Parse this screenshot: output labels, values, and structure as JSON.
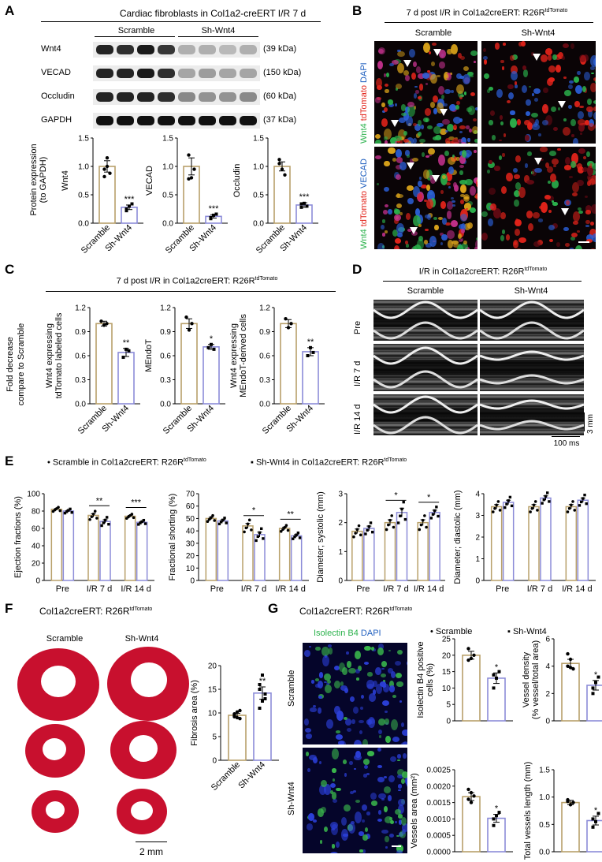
{
  "panels": {
    "A": {
      "letter": "A",
      "title": "Cardiac fibroblasts in Col1a2-creERT I/R 7 d",
      "groups": [
        "Scramble",
        "Sh-Wnt4"
      ],
      "blots": [
        {
          "name": "Wnt4",
          "size": "(39 kDa)",
          "bands": [
            0.9,
            0.85,
            0.95,
            0.8,
            0.15,
            0.15,
            0.1,
            0.15
          ]
        },
        {
          "name": "VECAD",
          "size": "(150 kDa)",
          "bands": [
            0.9,
            0.9,
            0.95,
            0.85,
            0.2,
            0.25,
            0.2,
            0.2
          ]
        },
        {
          "name": "Occludin",
          "size": "(60 kDa)",
          "bands": [
            0.9,
            0.9,
            0.9,
            0.85,
            0.35,
            0.3,
            0.3,
            0.35
          ]
        },
        {
          "name": "GAPDH",
          "size": "(37 kDa)",
          "bands": [
            1,
            1,
            1,
            1,
            1,
            1,
            1,
            1
          ]
        }
      ]
    },
    "B": {
      "letter": "B",
      "title_pre": "7 d post I/R in Col1a2creERT: R26R",
      "title_sup": "tdTomato",
      "columns": [
        "Scramble",
        "Sh-Wnt4"
      ],
      "row1_label": [
        "Wnt4",
        " tdTomato",
        " DAPI"
      ],
      "row2_label": [
        "Wnt4",
        " tdTomato",
        " VECAD"
      ]
    },
    "C": {
      "letter": "C",
      "title_pre": "7 d post I/R in Col1a2creERT: R26R",
      "title_sup": "tdTomato",
      "common_ylabel": [
        "Fold  decrease",
        "compare to Scramble"
      ]
    },
    "D": {
      "letter": "D",
      "title_pre": "I/R in Col1a2creERT: R26R",
      "title_sup": "tdTomato",
      "columns": [
        "Scramble",
        "Sh-Wnt4"
      ],
      "rows": [
        "Pre",
        "I/R 7 d",
        "I/R 14 d"
      ],
      "scale_y": "3 mm",
      "scale_x": "100 ms"
    },
    "E": {
      "letter": "E",
      "legend": [
        {
          "symbol": "•",
          "text": "Scramble in Col1a2creERT: R26R",
          "sup": "tdTomato"
        },
        {
          "symbol": "▪",
          "text": "Sh-Wnt4 in Col1a2creERT: R26R",
          "sup": "tdTomato"
        }
      ]
    },
    "F": {
      "letter": "F",
      "title_pre": "Col1a2creERT: R26R",
      "title_sup": "tdTomato",
      "columns": [
        "Scramble",
        "Sh-Wnt4"
      ],
      "scale": "2 mm"
    },
    "G": {
      "letter": "G",
      "title_pre": "Col1a2creERT: R26R",
      "title_sup": "tdTomato",
      "stain": [
        "Isolectin B4",
        " DAPI"
      ],
      "rows": [
        "Scramble",
        "Sh-Wnt4"
      ],
      "legend": [
        "• Scramble",
        "▪ Sh-Wnt4"
      ]
    }
  },
  "colors": {
    "scramble": "#b8a06a",
    "shwnt4": "#8c8cd8",
    "sig": "#000000"
  },
  "chart_data": [
    {
      "id": "A-wnt4",
      "type": "bar",
      "categories": [
        "Scramble",
        "Sh-Wnt4"
      ],
      "values": [
        1.0,
        0.28
      ],
      "errors": [
        0.1,
        0.04
      ],
      "ylabel": "Wnt4",
      "ylim": [
        0,
        1.5
      ],
      "yticks": [
        "0.0",
        "0.5",
        "1.0",
        "1.5"
      ],
      "sig": "***",
      "points": [
        [
          0.95,
          1.15,
          0.88,
          0.82,
          1.0
        ],
        [
          0.25,
          0.3,
          0.34,
          0.22
        ]
      ],
      "outer_ylabel": [
        "Protein expression",
        "(to GAPDH)"
      ]
    },
    {
      "id": "A-vecad",
      "type": "bar",
      "categories": [
        "Scramble",
        "Sh-Wnt4"
      ],
      "values": [
        1.0,
        0.12
      ],
      "errors": [
        0.15,
        0.03
      ],
      "ylabel": "VECAD",
      "ylim": [
        0,
        1.5
      ],
      "yticks": [
        "0.0",
        "0.5",
        "1.0",
        "1.5"
      ],
      "sig": "***",
      "points": [
        [
          1.2,
          0.8,
          0.95,
          0.78
        ],
        [
          0.1,
          0.14,
          0.16,
          0.08
        ]
      ]
    },
    {
      "id": "A-occludin",
      "type": "bar",
      "categories": [
        "Scramble",
        "Sh-Wnt4"
      ],
      "values": [
        1.0,
        0.32
      ],
      "errors": [
        0.08,
        0.04
      ],
      "ylabel": "Occludin",
      "ylim": [
        0,
        1.5
      ],
      "yticks": [
        "0.0",
        "0.5",
        "1.0",
        "1.5"
      ],
      "sig": "***",
      "points": [
        [
          1.12,
          0.95,
          0.85,
          1.05
        ],
        [
          0.28,
          0.35,
          0.3,
          0.34
        ]
      ]
    },
    {
      "id": "C-1",
      "type": "bar",
      "categories": [
        "Scramble",
        "Sh-Wnt4"
      ],
      "values": [
        1.0,
        0.64
      ],
      "errors": [
        0.03,
        0.05
      ],
      "ylabel": [
        "Wnt4 expressing",
        "tdTomato labeled cells"
      ],
      "ylim": [
        0,
        1.2
      ],
      "yticks": [
        "0.0",
        "0.3",
        "0.6",
        "0.9",
        "1.2"
      ],
      "sig": "**",
      "points": [
        [
          1.03,
          0.98,
          1.0
        ],
        [
          0.58,
          0.68,
          0.66
        ]
      ]
    },
    {
      "id": "C-2",
      "type": "bar",
      "categories": [
        "Scramble",
        "Sh-Wnt4"
      ],
      "values": [
        1.0,
        0.71
      ],
      "errors": [
        0.06,
        0.03
      ],
      "ylabel": "MEndoT",
      "ylim": [
        0,
        1.2
      ],
      "yticks": [
        "0.0",
        "0.3",
        "0.6",
        "0.9",
        "1.2"
      ],
      "sig": "*",
      "points": [
        [
          1.08,
          0.92,
          1.0
        ],
        [
          0.7,
          0.74,
          0.68
        ]
      ]
    },
    {
      "id": "C-3",
      "type": "bar",
      "categories": [
        "Scramble",
        "Sh-Wnt4"
      ],
      "values": [
        1.0,
        0.65
      ],
      "errors": [
        0.05,
        0.05
      ],
      "ylabel": [
        "Wnt4 expressing",
        "MEndoT-derived cells"
      ],
      "ylim": [
        0,
        1.2
      ],
      "yticks": [
        "0.0",
        "0.3",
        "0.6",
        "0.9",
        "1.2"
      ],
      "sig": "**",
      "points": [
        [
          1.06,
          0.95,
          1.0
        ],
        [
          0.6,
          0.7,
          0.64
        ]
      ]
    },
    {
      "id": "E-ef",
      "type": "bar",
      "categories": [
        "Pre",
        "I/R 7 d",
        "I/R 14 d"
      ],
      "series": [
        {
          "values": [
            82,
            75,
            74
          ]
        },
        {
          "values": [
            80,
            68,
            67
          ]
        }
      ],
      "errors": [
        [
          1,
          2,
          1
        ],
        [
          1,
          2,
          1
        ]
      ],
      "ylabel": "Ejection fractions (%)",
      "ylim": [
        0,
        100
      ],
      "yticks": [
        "0",
        "20",
        "40",
        "60",
        "80",
        "100"
      ],
      "sig": [
        null,
        "**",
        "***"
      ]
    },
    {
      "id": "E-fs",
      "type": "bar",
      "categories": [
        "Pre",
        "I/R 7 d",
        "I/R 14 d"
      ],
      "series": [
        {
          "values": [
            50,
            44,
            42
          ]
        },
        {
          "values": [
            48,
            37,
            36
          ]
        }
      ],
      "errors": [
        [
          1,
          2,
          1
        ],
        [
          1,
          2,
          1
        ]
      ],
      "ylabel": "Fractional shorting (%)",
      "ylim": [
        0,
        70
      ],
      "yticks": [
        "0",
        "10",
        "20",
        "30",
        "40",
        "50",
        "60",
        "70"
      ],
      "sig": [
        null,
        "*",
        "**"
      ]
    },
    {
      "id": "E-ds",
      "type": "bar",
      "categories": [
        "Pre",
        "I/R 7 d",
        "I/R 14 d"
      ],
      "series": [
        {
          "values": [
            1.7,
            2.0,
            2.0
          ]
        },
        {
          "values": [
            1.8,
            2.35,
            2.35
          ]
        }
      ],
      "errors": [
        [
          0.08,
          0.1,
          0.1
        ],
        [
          0.08,
          0.15,
          0.08
        ]
      ],
      "ylabel": "Diameter; systolic (mm)",
      "ylim": [
        0,
        3
      ],
      "yticks": [
        "0",
        "1",
        "2",
        "3"
      ],
      "sig": [
        null,
        "*",
        "*"
      ]
    },
    {
      "id": "E-dd",
      "type": "bar",
      "categories": [
        "Pre",
        "I/R 7 d",
        "I/R 14 d"
      ],
      "series": [
        {
          "values": [
            3.4,
            3.4,
            3.4
          ]
        },
        {
          "values": [
            3.6,
            3.8,
            3.7
          ]
        }
      ],
      "errors": [
        [
          0.1,
          0.1,
          0.1
        ],
        [
          0.1,
          0.1,
          0.1
        ]
      ],
      "ylabel": "Diameter; diastolic (mm)",
      "ylim": [
        0,
        4
      ],
      "yticks": [
        "0",
        "1",
        "2",
        "3",
        "4"
      ],
      "sig": [
        null,
        null,
        null
      ]
    },
    {
      "id": "F-1",
      "type": "bar",
      "categories": [
        "Scramble",
        "Sh-Wnt4"
      ],
      "values": [
        9.5,
        14.2
      ],
      "errors": [
        0.4,
        1.3
      ],
      "ylabel": "Fibrosis area (%)",
      "ylim": [
        0,
        20
      ],
      "yticks": [
        "0",
        "5",
        "10",
        "15",
        "20"
      ],
      "sig": "**",
      "points": [
        [
          9.5,
          10.2,
          8.8,
          9.2,
          9.0,
          10.5,
          9.8
        ],
        [
          11,
          12.5,
          14,
          16,
          18,
          13,
          15
        ]
      ]
    },
    {
      "id": "G-1",
      "type": "bar",
      "categories": [
        "",
        ""
      ],
      "values": [
        20,
        13
      ],
      "errors": [
        1.2,
        1.6
      ],
      "ylabel": [
        "Isolectin B4 positive",
        "cells (%)"
      ],
      "ylim": [
        0,
        25
      ],
      "yticks": [
        "0",
        "5",
        "10",
        "15",
        "20",
        "25"
      ],
      "sig": "*",
      "points": [
        [
          22,
          19,
          20,
          18.5
        ],
        [
          10,
          13,
          15,
          14
        ]
      ]
    },
    {
      "id": "G-2",
      "type": "bar",
      "categories": [
        "",
        ""
      ],
      "values": [
        4.2,
        2.6
      ],
      "errors": [
        0.3,
        0.35
      ],
      "ylabel": [
        "Vessel density",
        "(% vessel/total area)"
      ],
      "ylim": [
        0,
        6
      ],
      "yticks": [
        "0",
        "2",
        "4",
        "6"
      ],
      "sig": "*",
      "points": [
        [
          4.9,
          4.5,
          3.8,
          4.0,
          3.9
        ],
        [
          2.0,
          2.8,
          3.2,
          2.4
        ]
      ]
    },
    {
      "id": "G-3",
      "type": "bar",
      "categories": [
        "",
        ""
      ],
      "values": [
        0.00168,
        0.00102
      ],
      "errors": [
        0.00012,
        0.00012
      ],
      "ylabel": "Vessels area (mm²)",
      "ylim": [
        0,
        0.0025
      ],
      "yticks": [
        "0.0000",
        "0.0005",
        "0.0010",
        "0.0015",
        "0.0020",
        "0.0025"
      ],
      "sig": "*",
      "points": [
        [
          0.0019,
          0.0015,
          0.0017,
          0.0016,
          0.0018
        ],
        [
          0.0008,
          0.0011,
          0.0012,
          0.001
        ]
      ]
    },
    {
      "id": "G-4",
      "type": "bar",
      "categories": [
        "",
        ""
      ],
      "values": [
        0.9,
        0.57
      ],
      "errors": [
        0.04,
        0.08
      ],
      "ylabel": "Total vessels length (mm)",
      "ylim": [
        0,
        1.5
      ],
      "yticks": [
        "0.0",
        "0.5",
        "1.0",
        "1.5"
      ],
      "sig": "*",
      "points": [
        [
          0.95,
          0.86,
          0.9,
          0.92
        ],
        [
          0.45,
          0.55,
          0.7,
          0.6
        ]
      ]
    }
  ]
}
